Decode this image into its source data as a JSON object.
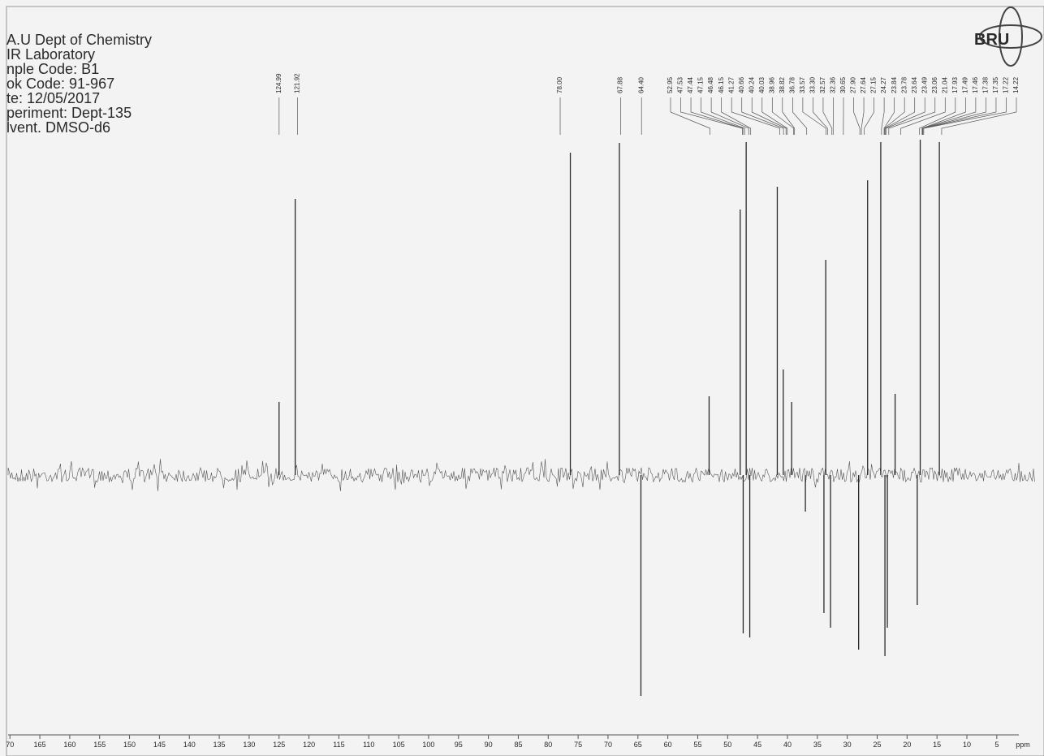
{
  "chart_data": {
    "type": "stem",
    "header": [
      "A.U Dept of Chemistry",
      "IR Laboratory",
      "nple Code: B1",
      "ok Code: 91-967",
      "te: 12/05/2017",
      "periment: Dept-135",
      "lvent. DMSO-d6"
    ],
    "brand": "BRU",
    "x_label": "ppm",
    "x": [
      125.0,
      122.3,
      76.3,
      68.1,
      64.5,
      53.1,
      47.9,
      47.4,
      46.9,
      46.3,
      41.7,
      40.7,
      39.3,
      37.0,
      33.9,
      33.6,
      32.8,
      28.1,
      26.6,
      24.4,
      23.7,
      23.3,
      22.0,
      18.3,
      17.8,
      14.6
    ],
    "values": [
      90,
      340,
      397,
      409,
      -272,
      97,
      327,
      -195,
      410,
      -200,
      355,
      130,
      90,
      -45,
      -170,
      265,
      -188,
      -215,
      363,
      410,
      -223,
      -188,
      100,
      -160,
      413,
      410
    ],
    "peak_labels": [
      "124.99",
      "121.92",
      "78.00",
      "67.88",
      "64.40",
      "52.95",
      "47.53",
      "47.44",
      "47.15",
      "46.48",
      "46.15",
      "41.27",
      "40.66",
      "40.24",
      "40.03",
      "38.96",
      "38.82",
      "36.78",
      "33.57",
      "33.30",
      "32.57",
      "32.36",
      "30.65",
      "27.90",
      "27.64",
      "27.15",
      "24.27",
      "23.84",
      "23.78",
      "23.64",
      "23.49",
      "23.06",
      "21.04",
      "17.93",
      "17.49",
      "17.46",
      "17.38",
      "17.35",
      "17.22",
      "14.22"
    ],
    "xlim": [
      170.3,
      -1.4
    ],
    "xticks": [
      {
        "value": 170,
        "label": "70"
      },
      165,
      160,
      155,
      150,
      145,
      140,
      135,
      130,
      125,
      120,
      115,
      110,
      105,
      100,
      95,
      90,
      85,
      80,
      75,
      70,
      65,
      60,
      55,
      50,
      45,
      40,
      35,
      30,
      25,
      20,
      15,
      10,
      5
    ],
    "ylim": [
      -300,
      420
    ],
    "color": "#2a2a2a"
  }
}
